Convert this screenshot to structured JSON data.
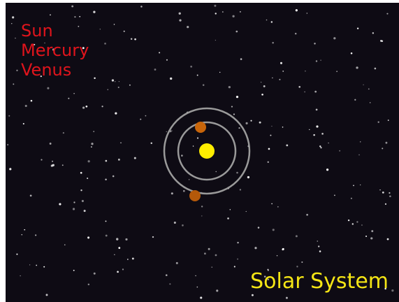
{
  "labels": [
    "Sun",
    "Mercury",
    "Venus"
  ],
  "title": "Solar System"
}
